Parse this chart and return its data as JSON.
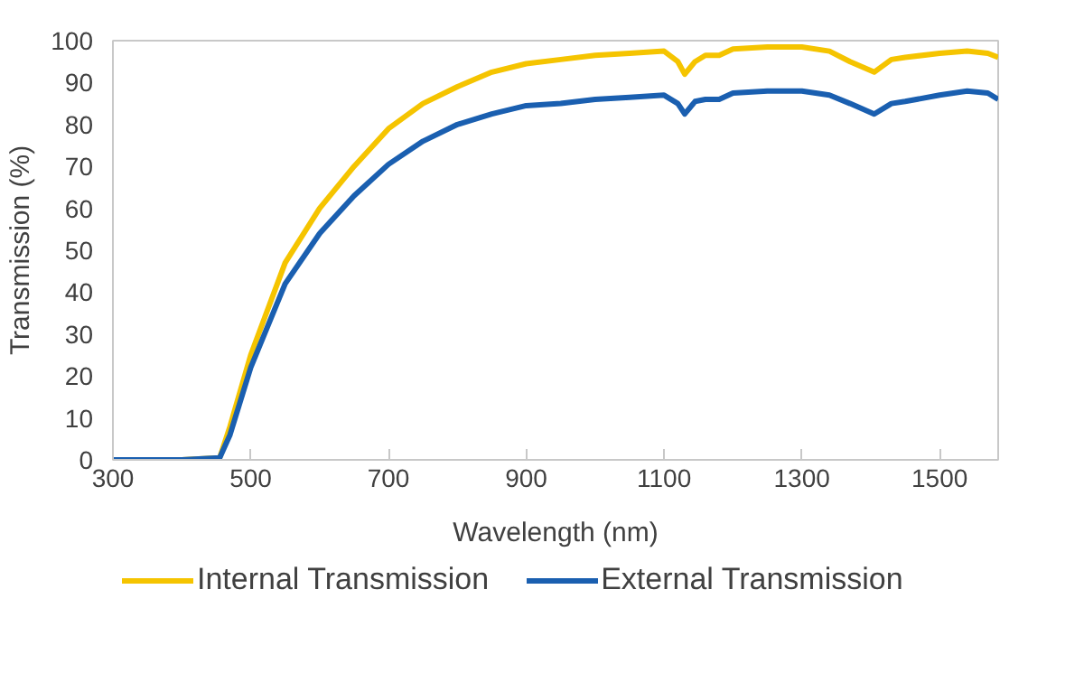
{
  "chart_data": {
    "type": "line",
    "xlabel": "Wavelength (nm)",
    "ylabel": "Transmission (%)",
    "xlim": [
      300,
      1585
    ],
    "ylim": [
      0,
      100
    ],
    "xticks": [
      300,
      500,
      700,
      900,
      1100,
      1300,
      1500
    ],
    "yticks": [
      0,
      10,
      20,
      30,
      40,
      50,
      60,
      70,
      80,
      90,
      100
    ],
    "grid": false,
    "legend": "bottom",
    "marker": "none",
    "line_style": "solid",
    "series": [
      {
        "name": "Internal Transmission",
        "color": "#f5c400",
        "x": [
          300,
          400,
          455,
          470,
          500,
          550,
          600,
          650,
          700,
          750,
          800,
          850,
          900,
          950,
          1000,
          1050,
          1100,
          1120,
          1130,
          1145,
          1160,
          1180,
          1200,
          1250,
          1300,
          1340,
          1370,
          1405,
          1430,
          1450,
          1500,
          1540,
          1570,
          1585
        ],
        "values": [
          0,
          0,
          0.5,
          8,
          25,
          47,
          60,
          70,
          79,
          85,
          89,
          92.5,
          94.5,
          95.5,
          96.5,
          97,
          97.5,
          95,
          92,
          95,
          96.5,
          96.5,
          98,
          98.5,
          98.5,
          97.5,
          95,
          92.5,
          95.5,
          96,
          97,
          97.5,
          97,
          96
        ]
      },
      {
        "name": "External Transmission",
        "color": "#1a5fb0",
        "x": [
          300,
          400,
          455,
          470,
          500,
          550,
          600,
          650,
          700,
          750,
          800,
          850,
          900,
          950,
          1000,
          1050,
          1100,
          1120,
          1130,
          1145,
          1160,
          1180,
          1200,
          1250,
          1300,
          1340,
          1370,
          1405,
          1430,
          1450,
          1500,
          1540,
          1570,
          1585
        ],
        "values": [
          0,
          0,
          0.5,
          6,
          22,
          42,
          54,
          63,
          70.5,
          76,
          80,
          82.5,
          84.5,
          85,
          86,
          86.5,
          87,
          85,
          82.5,
          85.5,
          86,
          86,
          87.5,
          88,
          88,
          87,
          85,
          82.5,
          85,
          85.5,
          87,
          88,
          87.5,
          86
        ]
      }
    ]
  }
}
